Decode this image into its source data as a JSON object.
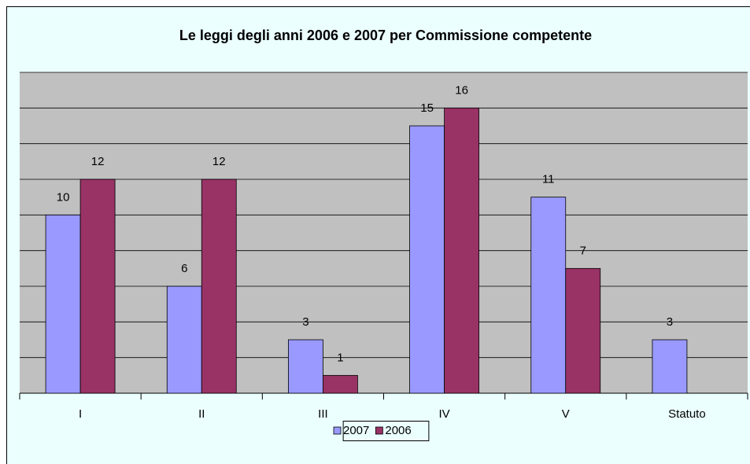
{
  "chart_data": {
    "type": "bar",
    "title": "Le leggi degli anni 2006 e 2007 per Commissione competente",
    "categories": [
      "I",
      "II",
      "III",
      "IV",
      "V",
      "Statuto"
    ],
    "series": [
      {
        "name": "2007",
        "color": "#9999ff",
        "values": [
          10,
          6,
          3,
          15,
          11,
          3
        ]
      },
      {
        "name": "2006",
        "color": "#993366",
        "values": [
          12,
          12,
          1,
          16,
          7,
          null
        ]
      }
    ],
    "ylim": [
      0,
      18
    ],
    "yticks": [
      0,
      2,
      4,
      6,
      8,
      10,
      12,
      14,
      16,
      18
    ],
    "grid": true,
    "legend": "bottom"
  }
}
